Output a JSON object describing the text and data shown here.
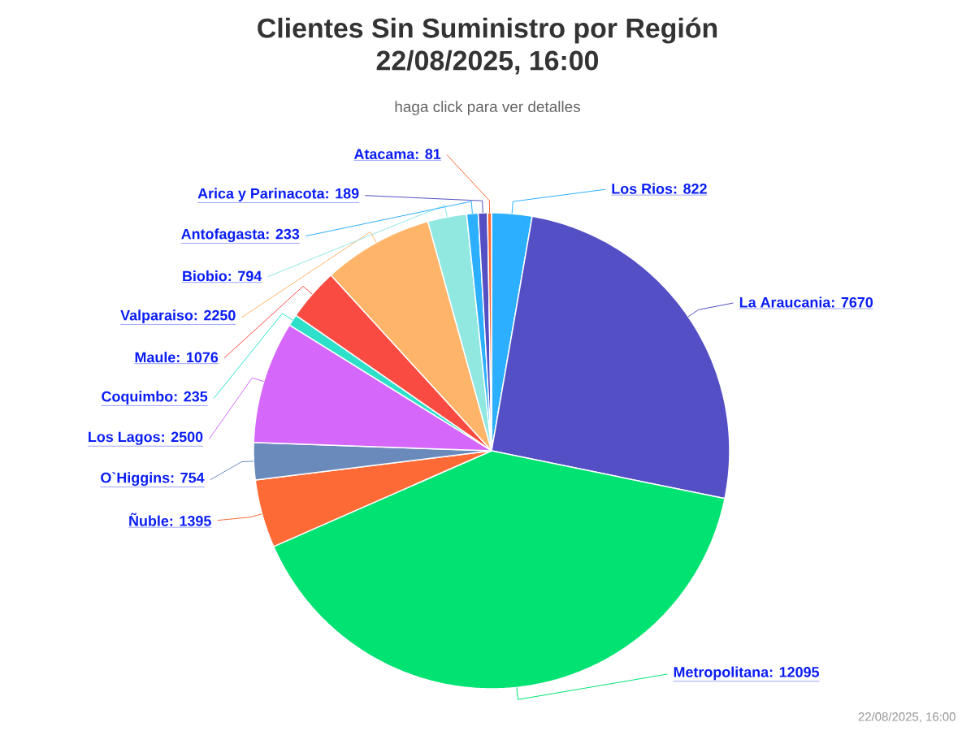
{
  "chart_data": {
    "type": "pie",
    "title": "Clientes Sin Suministro por Región 22/08/2025, 16:00",
    "subtitle": "haga click para ver detalles",
    "categories": [
      "Los Rios",
      "La Araucania",
      "Metropolitana",
      "Ñuble",
      "O`Higgins",
      "Los Lagos",
      "Coquimbo",
      "Maule",
      "Valparaiso",
      "Biobio",
      "Antofagasta",
      "Arica y Parinacota",
      "Atacama"
    ],
    "values": [
      822,
      7670,
      12095,
      1395,
      754,
      2500,
      235,
      1076,
      2250,
      794,
      233,
      189,
      81
    ],
    "colors": [
      "#2caffe",
      "#544fc5",
      "#00e272",
      "#fe6a35",
      "#6b8abc",
      "#d568fb",
      "#2ee0ca",
      "#fa4b42",
      "#feb56a",
      "#91e8e1",
      "#2caffe",
      "#544fc5",
      "#fe6a35"
    ],
    "value_labels": [
      ": 822",
      ": 7670",
      ": 12095",
      ": 1395",
      ": 754",
      ": 2500",
      ": 235",
      ": 1076",
      ": 2250",
      ": 794",
      ": 233",
      ": 189",
      ": 81"
    ],
    "annotations": [
      "22/08/2025, 16:00"
    ]
  }
}
